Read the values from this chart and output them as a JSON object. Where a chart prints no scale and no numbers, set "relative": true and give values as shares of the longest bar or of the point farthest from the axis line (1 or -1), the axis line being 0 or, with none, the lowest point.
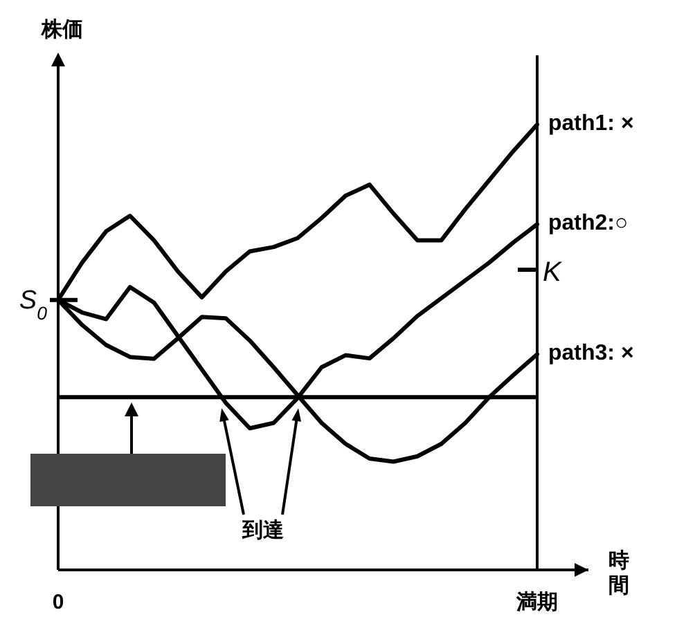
{
  "chart_data": {
    "type": "line",
    "relative": true,
    "xlabel": "時間",
    "ylabel": "株価",
    "marker": "none",
    "line_style": "solid",
    "categories": [
      "0",
      null,
      null,
      null,
      null,
      null,
      null,
      null,
      null,
      null,
      null,
      null,
      null,
      null,
      null,
      null,
      null,
      null,
      null,
      null,
      "満期"
    ],
    "annotations": [
      "S$_{0}$",
      "K",
      "到達"
    ],
    "ref_lines": [
      {
        "axis": "y",
        "value": 0.388,
        "color": "#000000"
      },
      {
        "axis": "x",
        "value": "満期",
        "color": "#000000"
      }
    ],
    "series": [
      {
        "name": "path1: ×",
        "color": "#000000",
        "values": [
          0.606,
          0.69,
          0.76,
          0.795,
          0.74,
          0.67,
          0.612,
          0.67,
          0.715,
          0.725,
          0.745,
          0.79,
          0.84,
          0.865,
          0.8,
          0.74,
          0.74,
          0.81,
          0.875,
          0.94,
          1.0
        ]
      },
      {
        "name": "path2:○",
        "color": "#000000",
        "values": [
          0.606,
          0.578,
          0.563,
          0.635,
          0.6,
          0.525,
          0.45,
          0.375,
          0.318,
          0.33,
          0.386,
          0.455,
          0.482,
          0.475,
          0.52,
          0.57,
          0.61,
          0.65,
          0.69,
          0.735,
          0.776
        ]
      },
      {
        "name": "path3: ×",
        "color": "#000000",
        "values": [
          0.606,
          0.55,
          0.505,
          0.478,
          0.474,
          0.52,
          0.568,
          0.565,
          0.515,
          0.455,
          0.392,
          0.33,
          0.283,
          0.25,
          0.243,
          0.255,
          0.283,
          0.33,
          0.388,
          0.437,
          0.484
        ]
      }
    ]
  }
}
